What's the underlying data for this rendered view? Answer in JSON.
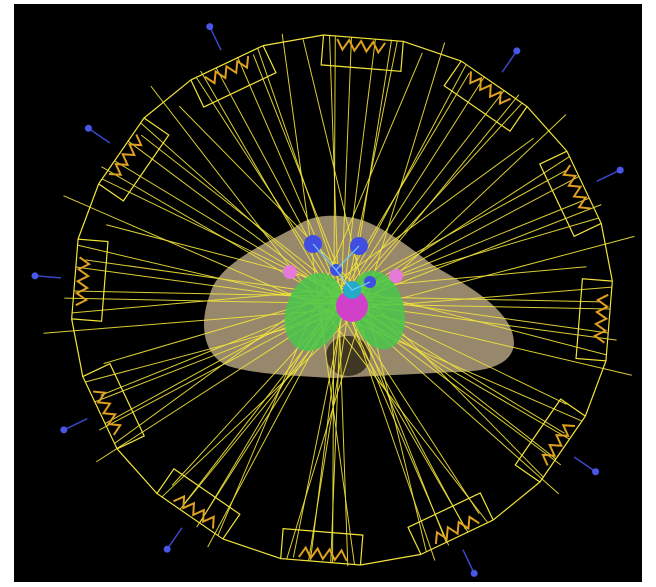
{
  "scene": {
    "kind": "3D radiotherapy beam-arrangement render (axial view)",
    "background": "#000000",
    "beam_count": 12,
    "colors": {
      "beam_lines": "#f2e43a",
      "collimator": "#e0a020",
      "collimator_dark": "#b06a10",
      "source_marker": "#4a56e8",
      "source_stem": "#3a46c8",
      "body_contour": "#f4dcae",
      "lung": "#47c84a",
      "spinal_cord": "#d040c8",
      "target": "#27a9c9",
      "nodes": "#3f4ee0",
      "pink_structure": "#e67ad8"
    }
  }
}
